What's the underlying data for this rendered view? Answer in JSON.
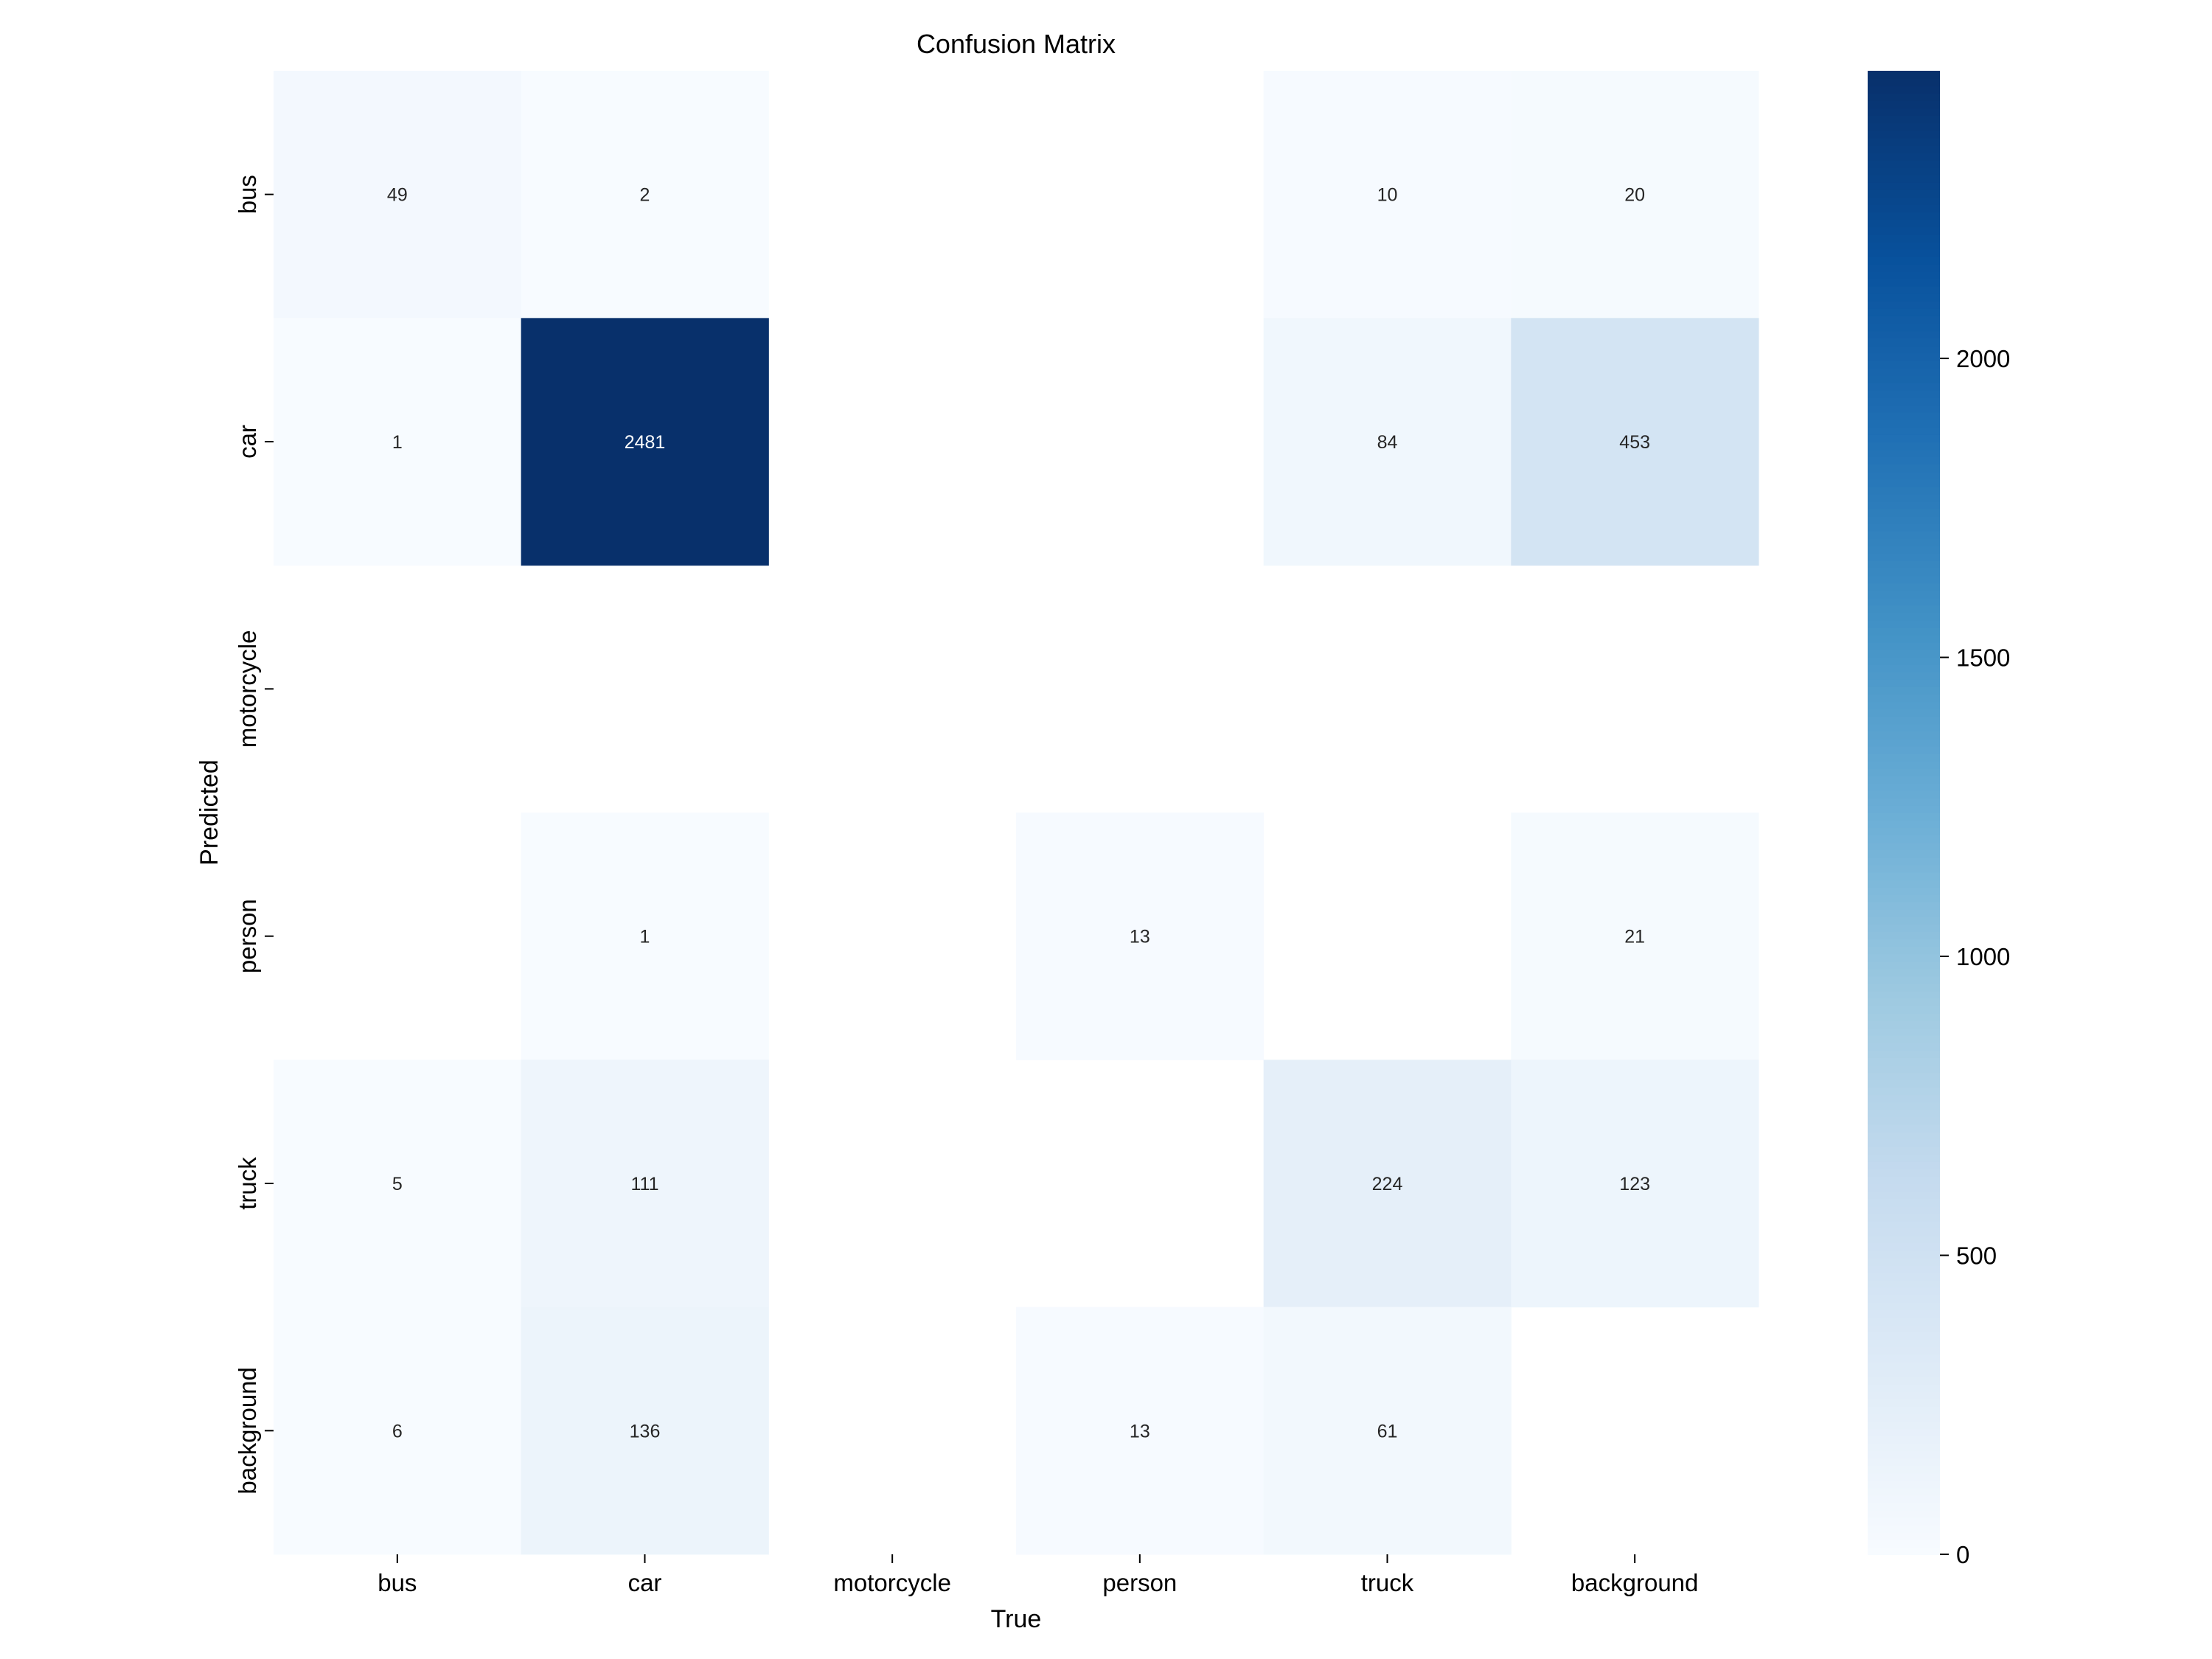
{
  "chart_data": {
    "type": "heatmap",
    "title": "Confusion Matrix",
    "xlabel": "True",
    "ylabel": "Predicted",
    "x_categories": [
      "bus",
      "car",
      "motorcycle",
      "person",
      "truck",
      "background"
    ],
    "y_categories": [
      "bus",
      "car",
      "motorcycle",
      "person",
      "truck",
      "background"
    ],
    "values": [
      [
        49,
        2,
        null,
        null,
        10,
        20
      ],
      [
        1,
        2481,
        null,
        null,
        84,
        453
      ],
      [
        null,
        null,
        null,
        null,
        null,
        null
      ],
      [
        null,
        1,
        null,
        13,
        null,
        21
      ],
      [
        5,
        111,
        null,
        null,
        224,
        123
      ],
      [
        6,
        136,
        null,
        13,
        61,
        null
      ]
    ],
    "colormap": "Blues",
    "colorbar": {
      "range": [
        0,
        2481
      ],
      "ticks": [
        0,
        500,
        1000,
        1500,
        2000
      ]
    },
    "grid": false
  }
}
